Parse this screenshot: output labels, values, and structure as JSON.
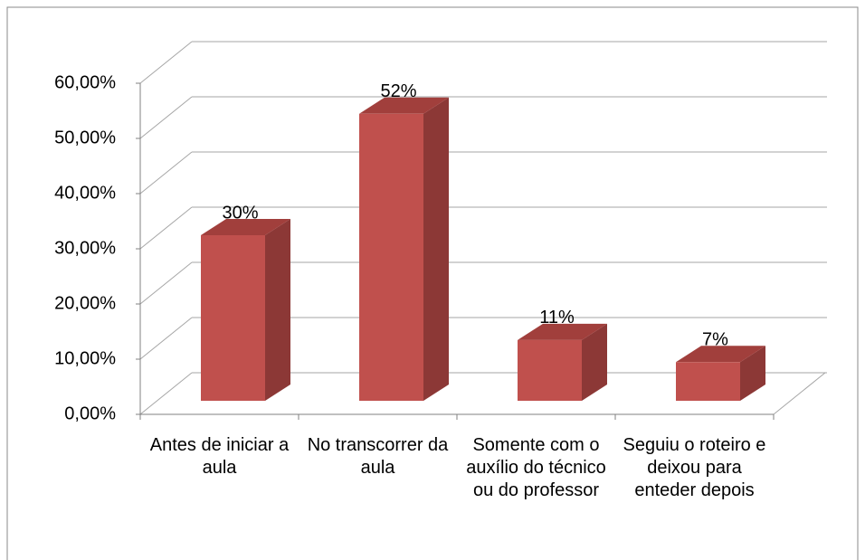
{
  "chart_data": {
    "type": "bar3d",
    "categories": [
      "Antes de iniciar a aula",
      "No transcorrer da aula",
      "Somente com o auxílio do técnico ou do professor",
      "Seguiu o roteiro e deixou para enteder depois"
    ],
    "values": [
      30,
      52,
      11,
      7
    ],
    "value_labels": [
      "30%",
      "52%",
      "11%",
      "7%"
    ],
    "color": "#c0504d",
    "ylim": [
      0,
      60
    ],
    "yticks": [
      {
        "value": 0,
        "label": "0,00%"
      },
      {
        "value": 10,
        "label": "10,00%"
      },
      {
        "value": 20,
        "label": "20,00%"
      },
      {
        "value": 30,
        "label": "30,00%"
      },
      {
        "value": 40,
        "label": "40,00%"
      },
      {
        "value": 50,
        "label": "50,00%"
      },
      {
        "value": 60,
        "label": "60,00%"
      }
    ],
    "grid": true
  }
}
